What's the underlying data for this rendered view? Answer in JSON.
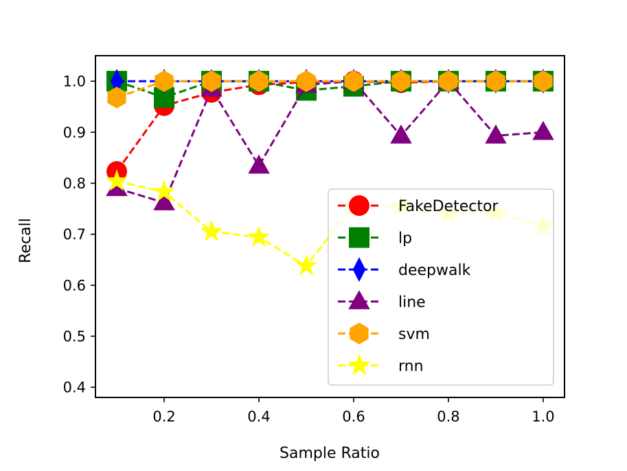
{
  "chart_data": {
    "type": "line",
    "title": "",
    "xlabel": "Sample Ratio",
    "ylabel": "Recall",
    "xlim": [
      0.055,
      1.045
    ],
    "ylim": [
      0.38,
      1.05
    ],
    "xticks": [
      0.2,
      0.4,
      0.6,
      0.8,
      1.0
    ],
    "xtick_labels": [
      "0.2",
      "0.4",
      "0.6",
      "0.8",
      "1.0"
    ],
    "yticks": [
      0.4,
      0.5,
      0.6,
      0.7,
      0.8,
      0.9,
      1.0
    ],
    "ytick_labels": [
      "0.4",
      "0.5",
      "0.6",
      "0.7",
      "0.8",
      "0.9",
      "1.0"
    ],
    "grid": false,
    "legend_position": "lower-right",
    "x": [
      0.1,
      0.2,
      0.3,
      0.4,
      0.5,
      0.6,
      0.7,
      0.8,
      0.9,
      1.0
    ],
    "series": [
      {
        "name": "FakeDetector",
        "color": "#ff0000",
        "marker": "circle",
        "values": [
          0.823,
          0.952,
          0.978,
          0.993,
          0.998,
          1.0,
          0.997,
          1.0,
          1.0,
          1.0
        ]
      },
      {
        "name": "lp",
        "color": "#008000",
        "marker": "square",
        "values": [
          1.0,
          0.968,
          1.0,
          1.0,
          0.982,
          0.99,
          1.0,
          1.0,
          1.0,
          1.0
        ]
      },
      {
        "name": "deepwalk",
        "color": "#0000ff",
        "marker": "thin_diamond",
        "values": [
          1.0,
          1.0,
          1.0,
          1.0,
          1.0,
          1.0,
          1.0,
          1.0,
          1.0,
          1.0
        ]
      },
      {
        "name": "line",
        "color": "#800080",
        "marker": "triangle",
        "values": [
          0.79,
          0.762,
          0.985,
          0.834,
          0.993,
          1.0,
          0.893,
          1.0,
          0.893,
          0.9
        ]
      },
      {
        "name": "svm",
        "color": "#ffa500",
        "marker": "hexagon",
        "values": [
          0.968,
          1.0,
          1.0,
          1.0,
          1.0,
          1.0,
          1.0,
          1.0,
          1.0,
          1.0
        ]
      },
      {
        "name": "rnn",
        "color": "#ffff00",
        "marker": "star",
        "values": [
          0.804,
          0.783,
          0.705,
          0.694,
          0.638,
          0.756,
          0.755,
          0.74,
          0.742,
          0.715
        ]
      }
    ]
  }
}
